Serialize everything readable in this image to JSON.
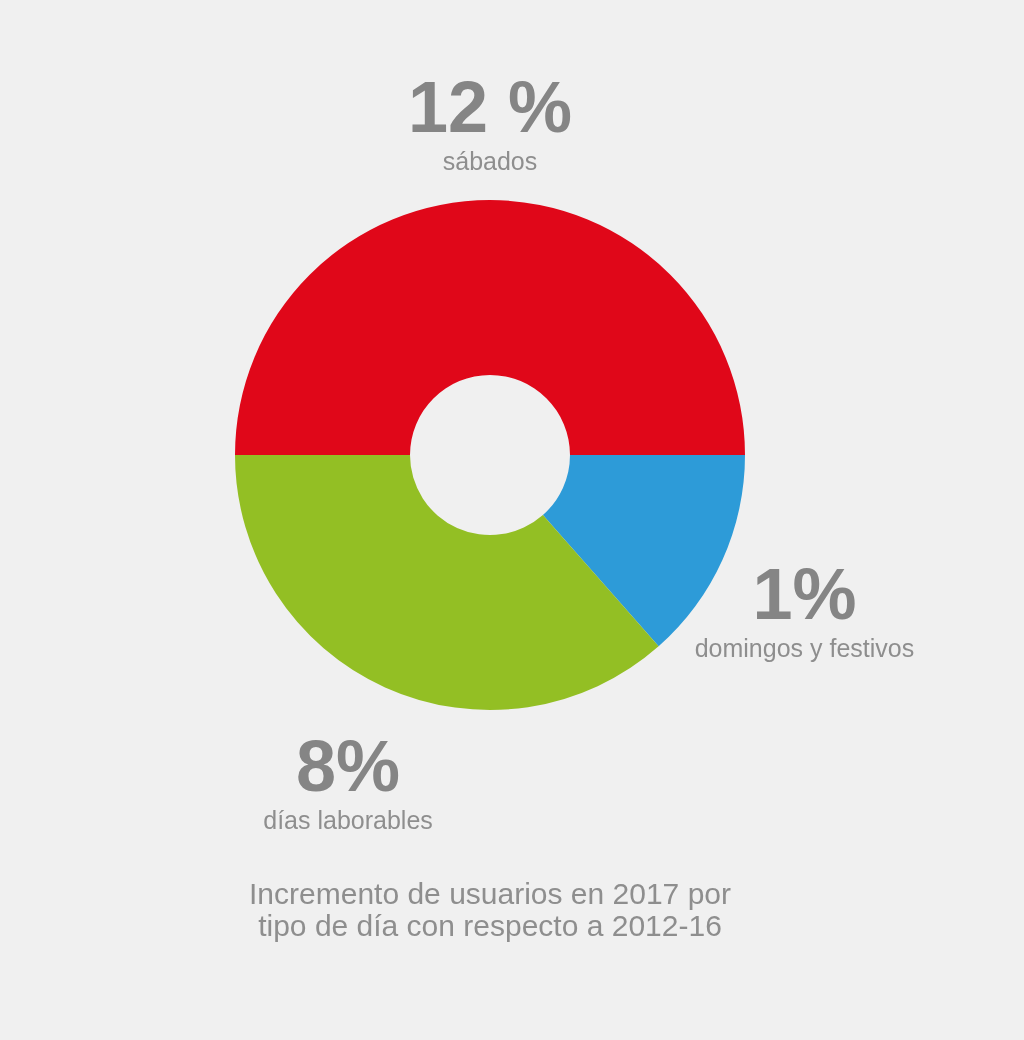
{
  "chart_data": {
    "type": "donut",
    "title": "Incremento de usuarios en 2017 por\ntipo de día con respecto a 2012-16",
    "categories": [
      "sábados",
      "domingos y festivos",
      "días laborables"
    ],
    "values": [
      50,
      13.5,
      36.5
    ],
    "colors": [
      "#e00719",
      "#2d9bd8",
      "#93bf24"
    ],
    "annotations": [
      "12 %",
      "1%",
      "8%"
    ],
    "legend": false
  }
}
